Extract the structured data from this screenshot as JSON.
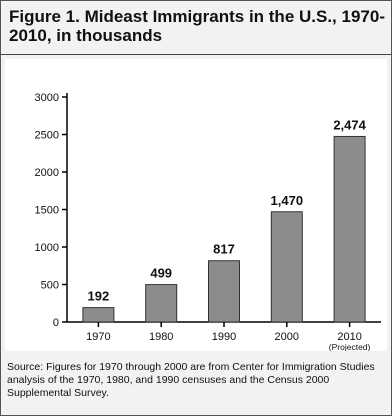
{
  "title": "Figure 1. Mideast Immigrants in the U.S., 1970-2010, in thousands",
  "source": "Source: Figures for 1970 through 2000 are from Center for Immigration Studies analysis of the 1970, 1980, and 1990 censuses and the Census 2000 Supplemental Survey.",
  "colors": {
    "bar": "#8c8c8c",
    "bar_edge": "#333333",
    "axis": "#000000"
  },
  "chart_data": {
    "type": "bar",
    "title": "Figure 1. Mideast Immigrants in the U.S., 1970-2010, in thousands",
    "categories": [
      "1970",
      "1980",
      "1990",
      "2000",
      "2010"
    ],
    "category_sublabels": [
      "",
      "",
      "",
      "",
      "(Projected)"
    ],
    "values": [
      192,
      499,
      817,
      1470,
      2474
    ],
    "value_labels": [
      "192",
      "499",
      "817",
      "1,470",
      "2,474"
    ],
    "yticks": [
      "0",
      "500",
      "1000",
      "1500",
      "2000",
      "2500",
      "3000"
    ],
    "ylim": [
      0,
      3000
    ],
    "xlabel": "",
    "ylabel": "",
    "grid": false
  }
}
